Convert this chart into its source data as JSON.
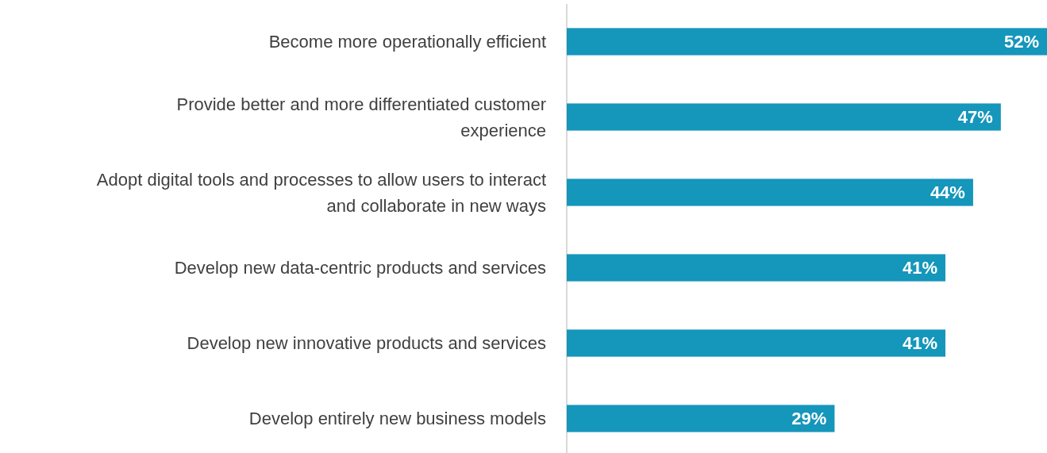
{
  "chart_data": {
    "type": "bar",
    "orientation": "horizontal",
    "categories": [
      "Become more operationally efficient",
      "Provide better and more differentiated customer experience",
      "Adopt digital tools and processes to allow users to interact and collaborate in new ways",
      "Develop new data-centric products and services",
      "Develop new innovative products and services",
      "Develop entirely new business models"
    ],
    "values": [
      52,
      47,
      44,
      41,
      41,
      29
    ],
    "value_labels": [
      "52%",
      "47%",
      "44%",
      "41%",
      "41%",
      "29%"
    ],
    "color": "#1596bb",
    "xlim": [
      0,
      52
    ]
  }
}
